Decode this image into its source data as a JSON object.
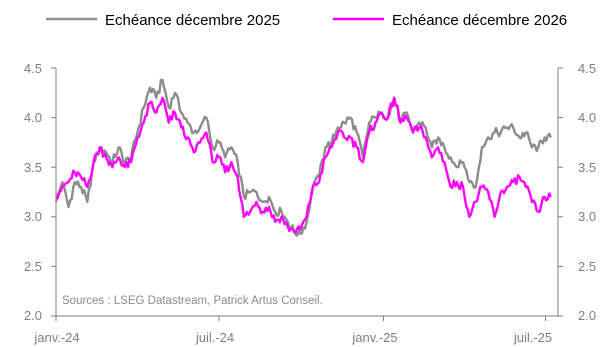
{
  "chart_data": {
    "type": "line",
    "legend_position": "top",
    "grid": false,
    "ylim": [
      2.0,
      4.5
    ],
    "y_ticks": [
      "2.0",
      "2.5",
      "3.0",
      "3.5",
      "4.0",
      "4.5"
    ],
    "y_ticks_right": [
      "2.0",
      "2.5",
      "3.0",
      "3.5",
      "4.0",
      "4.5"
    ],
    "x_ticks": [
      "janv.-24",
      "juil.-24",
      "janv.-25",
      "juil.-25"
    ],
    "x_tick_dates": [
      "2024-01-01",
      "2024-07-01",
      "2025-01-01",
      "2025-07-01"
    ],
    "x_range": [
      "2024-01-01",
      "2025-07-15"
    ],
    "source": "Sources : LSEG Datastream, Patrick Artus Conseil.",
    "colors": {
      "series1": "#8c8c8c",
      "series2": "#ff00ff",
      "axis": "#7f7f7f"
    },
    "series": [
      {
        "name": "Echéance décembre 2025",
        "color": "#8c8c8c",
        "points": [
          [
            "2024-01-01",
            3.15
          ],
          [
            "2024-01-08",
            3.35
          ],
          [
            "2024-01-15",
            3.1
          ],
          [
            "2024-01-22",
            3.35
          ],
          [
            "2024-01-29",
            3.3
          ],
          [
            "2024-02-05",
            3.15
          ],
          [
            "2024-02-12",
            3.55
          ],
          [
            "2024-02-19",
            3.7
          ],
          [
            "2024-02-26",
            3.65
          ],
          [
            "2024-03-04",
            3.55
          ],
          [
            "2024-03-11",
            3.7
          ],
          [
            "2024-03-18",
            3.55
          ],
          [
            "2024-03-25",
            3.6
          ],
          [
            "2024-04-01",
            3.85
          ],
          [
            "2024-04-08",
            4.1
          ],
          [
            "2024-04-15",
            4.3
          ],
          [
            "2024-04-22",
            4.2
          ],
          [
            "2024-04-29",
            4.38
          ],
          [
            "2024-05-06",
            4.1
          ],
          [
            "2024-05-13",
            4.25
          ],
          [
            "2024-05-20",
            4.05
          ],
          [
            "2024-05-27",
            3.95
          ],
          [
            "2024-06-03",
            3.85
          ],
          [
            "2024-06-10",
            3.9
          ],
          [
            "2024-06-17",
            4.0
          ],
          [
            "2024-06-24",
            3.7
          ],
          [
            "2024-07-01",
            3.75
          ],
          [
            "2024-07-08",
            3.6
          ],
          [
            "2024-07-15",
            3.7
          ],
          [
            "2024-07-22",
            3.55
          ],
          [
            "2024-07-29",
            3.2
          ],
          [
            "2024-08-05",
            3.25
          ],
          [
            "2024-08-12",
            3.25
          ],
          [
            "2024-08-19",
            3.15
          ],
          [
            "2024-08-26",
            3.2
          ],
          [
            "2024-09-02",
            3.05
          ],
          [
            "2024-09-09",
            3.05
          ],
          [
            "2024-09-16",
            2.95
          ],
          [
            "2024-09-23",
            2.85
          ],
          [
            "2024-09-30",
            2.83
          ],
          [
            "2024-10-07",
            2.95
          ],
          [
            "2024-10-14",
            3.3
          ],
          [
            "2024-10-21",
            3.4
          ],
          [
            "2024-10-28",
            3.7
          ],
          [
            "2024-11-04",
            3.75
          ],
          [
            "2024-11-11",
            3.9
          ],
          [
            "2024-11-18",
            3.95
          ],
          [
            "2024-11-25",
            4.0
          ],
          [
            "2024-12-02",
            3.85
          ],
          [
            "2024-12-09",
            3.6
          ],
          [
            "2024-12-16",
            3.95
          ],
          [
            "2024-12-23",
            4.0
          ],
          [
            "2024-12-30",
            4.05
          ],
          [
            "2025-01-06",
            4.0
          ],
          [
            "2025-01-13",
            4.2
          ],
          [
            "2025-01-20",
            3.95
          ],
          [
            "2025-01-27",
            4.05
          ],
          [
            "2025-02-03",
            3.85
          ],
          [
            "2025-02-10",
            3.95
          ],
          [
            "2025-02-17",
            3.9
          ],
          [
            "2025-02-24",
            3.7
          ],
          [
            "2025-03-03",
            3.8
          ],
          [
            "2025-03-10",
            3.7
          ],
          [
            "2025-03-17",
            3.6
          ],
          [
            "2025-03-24",
            3.5
          ],
          [
            "2025-03-31",
            3.55
          ],
          [
            "2025-04-07",
            3.35
          ],
          [
            "2025-04-14",
            3.3
          ],
          [
            "2025-04-21",
            3.7
          ],
          [
            "2025-04-28",
            3.8
          ],
          [
            "2025-05-05",
            3.85
          ],
          [
            "2025-05-12",
            3.85
          ],
          [
            "2025-05-19",
            3.9
          ],
          [
            "2025-05-26",
            3.9
          ],
          [
            "2025-06-02",
            3.8
          ],
          [
            "2025-06-09",
            3.85
          ],
          [
            "2025-06-16",
            3.7
          ],
          [
            "2025-06-23",
            3.7
          ],
          [
            "2025-06-30",
            3.8
          ],
          [
            "2025-07-07",
            3.8
          ]
        ]
      },
      {
        "name": "Echéance décembre 2026",
        "color": "#ff00ff",
        "points": [
          [
            "2024-01-01",
            3.2
          ],
          [
            "2024-01-08",
            3.3
          ],
          [
            "2024-01-15",
            3.35
          ],
          [
            "2024-01-22",
            3.45
          ],
          [
            "2024-01-29",
            3.4
          ],
          [
            "2024-02-05",
            3.3
          ],
          [
            "2024-02-12",
            3.55
          ],
          [
            "2024-02-19",
            3.7
          ],
          [
            "2024-02-26",
            3.6
          ],
          [
            "2024-03-04",
            3.5
          ],
          [
            "2024-03-11",
            3.6
          ],
          [
            "2024-03-18",
            3.5
          ],
          [
            "2024-03-25",
            3.55
          ],
          [
            "2024-04-01",
            3.8
          ],
          [
            "2024-04-08",
            3.95
          ],
          [
            "2024-04-15",
            4.15
          ],
          [
            "2024-04-22",
            4.05
          ],
          [
            "2024-04-29",
            4.2
          ],
          [
            "2024-05-06",
            3.95
          ],
          [
            "2024-05-13",
            4.05
          ],
          [
            "2024-05-20",
            3.9
          ],
          [
            "2024-05-27",
            3.8
          ],
          [
            "2024-06-03",
            3.65
          ],
          [
            "2024-06-10",
            3.75
          ],
          [
            "2024-06-17",
            3.85
          ],
          [
            "2024-06-24",
            3.55
          ],
          [
            "2024-07-01",
            3.6
          ],
          [
            "2024-07-08",
            3.45
          ],
          [
            "2024-07-15",
            3.55
          ],
          [
            "2024-07-22",
            3.4
          ],
          [
            "2024-07-29",
            3.0
          ],
          [
            "2024-08-05",
            3.05
          ],
          [
            "2024-08-12",
            3.15
          ],
          [
            "2024-08-19",
            3.05
          ],
          [
            "2024-08-26",
            3.1
          ],
          [
            "2024-09-02",
            2.95
          ],
          [
            "2024-09-09",
            3.0
          ],
          [
            "2024-09-16",
            2.9
          ],
          [
            "2024-09-23",
            2.85
          ],
          [
            "2024-09-30",
            2.87
          ],
          [
            "2024-10-07",
            3.0
          ],
          [
            "2024-10-14",
            3.3
          ],
          [
            "2024-10-21",
            3.35
          ],
          [
            "2024-10-28",
            3.6
          ],
          [
            "2024-11-04",
            3.7
          ],
          [
            "2024-11-11",
            3.85
          ],
          [
            "2024-11-18",
            3.8
          ],
          [
            "2024-11-25",
            3.8
          ],
          [
            "2024-12-02",
            3.7
          ],
          [
            "2024-12-09",
            3.55
          ],
          [
            "2024-12-16",
            3.85
          ],
          [
            "2024-12-23",
            3.95
          ],
          [
            "2024-12-30",
            4.05
          ],
          [
            "2025-01-06",
            4.0
          ],
          [
            "2025-01-13",
            4.2
          ],
          [
            "2025-01-20",
            3.95
          ],
          [
            "2025-01-27",
            4.0
          ],
          [
            "2025-02-03",
            3.85
          ],
          [
            "2025-02-10",
            3.9
          ],
          [
            "2025-02-17",
            3.8
          ],
          [
            "2025-02-24",
            3.6
          ],
          [
            "2025-03-03",
            3.7
          ],
          [
            "2025-03-10",
            3.55
          ],
          [
            "2025-03-17",
            3.3
          ],
          [
            "2025-03-24",
            3.35
          ],
          [
            "2025-03-31",
            3.3
          ],
          [
            "2025-04-07",
            3.0
          ],
          [
            "2025-04-14",
            3.15
          ],
          [
            "2025-04-21",
            3.3
          ],
          [
            "2025-04-28",
            3.25
          ],
          [
            "2025-05-05",
            3.0
          ],
          [
            "2025-05-12",
            3.25
          ],
          [
            "2025-05-19",
            3.3
          ],
          [
            "2025-05-26",
            3.35
          ],
          [
            "2025-06-02",
            3.4
          ],
          [
            "2025-06-09",
            3.3
          ],
          [
            "2025-06-16",
            3.15
          ],
          [
            "2025-06-23",
            3.05
          ],
          [
            "2025-06-30",
            3.2
          ],
          [
            "2025-07-07",
            3.2
          ]
        ]
      }
    ]
  }
}
